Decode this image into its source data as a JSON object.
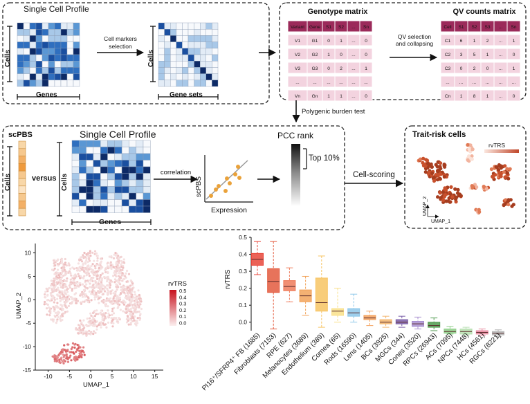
{
  "top_left": {
    "title": "Single Cell Profile",
    "cells_label": "Cells",
    "genes_label": "Genes",
    "arrow_label": [
      "Cell markers",
      "selection"
    ],
    "cells_label2": "Cells",
    "genesets_label": "Gene sets"
  },
  "top_right": {
    "geno_title": "Genotype matrix",
    "geno_header": [
      "Variant",
      "Gene",
      "S1",
      "S2",
      "...",
      "Sn"
    ],
    "geno_rows": [
      [
        "V1",
        "G1",
        "0",
        "1",
        "...",
        "0"
      ],
      [
        "V2",
        "G2",
        "1",
        "0",
        "...",
        "0"
      ],
      [
        "V3",
        "G3",
        "0",
        "2",
        "...",
        "1"
      ],
      [
        "...",
        "...",
        "...",
        "...",
        "...",
        "..."
      ],
      [
        "Vn",
        "Gn",
        "1",
        "1",
        "...",
        "0"
      ]
    ],
    "arrow_label": [
      "QV selection",
      "and collapsing"
    ],
    "qv_title": "QV counts matrix",
    "qv_header": [
      "Cell",
      "S1",
      "S2",
      "S3",
      "...",
      "Sn"
    ],
    "qv_rows": [
      [
        "C1",
        "6",
        "1",
        "2",
        "...",
        "1"
      ],
      [
        "C2",
        "3",
        "5",
        "1",
        "...",
        "0"
      ],
      [
        "C3",
        "0",
        "2",
        "0",
        "...",
        "1"
      ],
      [
        "...",
        "...",
        "...",
        "...",
        "...",
        "..."
      ],
      [
        "Cn",
        "1",
        "8",
        "1",
        "...",
        "0"
      ]
    ]
  },
  "burden_label": "Polygenic burden test",
  "middle": {
    "scpbs_title": "scPBS",
    "cells_label": "Cells",
    "versus_label": "versus",
    "profile_title": "Single Cell Profile",
    "cells_label2": "Cells",
    "genes_label": "Genes",
    "correlation_label": "correlation",
    "scatter_ylabel": "scPBS",
    "scatter_xlabel": "Expression",
    "pcc_title": "PCC rank",
    "top_label": "Top 10%",
    "cellscoring_label": "Cell-scoring",
    "trait_title": "Trait-risk cells",
    "rvtrs_label": "rvTRS",
    "umap2": "UMAP_2",
    "umap1": "UMAP_1"
  },
  "umap": {
    "ylabel": "UMAP_2",
    "xlabel": "UMAP_1",
    "legend_title": "rvTRS",
    "legend_ticks": [
      "0.5",
      "0.4",
      "0.3",
      "0.2",
      "0.1",
      "0.0"
    ],
    "xticks": [
      "-10",
      "-5",
      "0",
      "5",
      "10",
      "15"
    ],
    "yticks": [
      "10",
      "5",
      "0",
      "-5",
      "-10",
      "-15"
    ],
    "colors": {
      "low": "#f5e1e1",
      "high": "#d11f2a"
    }
  },
  "chart_data": {
    "type": "box",
    "ylabel": "rvTRS",
    "ylim": [
      -0.05,
      0.5
    ],
    "yticks": [
      "0.5",
      "0.4",
      "0.3",
      "0.2",
      "0.1",
      "0.0"
    ],
    "categories": [
      "PI16⁺/SFRP4⁺ FB (1685)",
      "Fibroblasts (7153)",
      "RPE (627)",
      "Melanocytes (3689)",
      "Endothelium (389)",
      "Cornea (65)",
      "Rods (16590)",
      "Lens (1405)",
      "BCs (3925)",
      "MGCs (344)",
      "Cones (3520)",
      "RPCs (26943)",
      "ACs (7095)",
      "NPCs (7448)",
      "HCs (4561)",
      "RGCs (8221)"
    ],
    "series": [
      {
        "name": "PI16⁺/SFRP4⁺ FB (1685)",
        "min": 0.28,
        "q1": 0.335,
        "median": 0.37,
        "q3": 0.405,
        "max": 0.475,
        "color": "#e8463a"
      },
      {
        "name": "Fibroblasts (7153)",
        "min": -0.04,
        "q1": 0.175,
        "median": 0.24,
        "q3": 0.315,
        "max": 0.475,
        "color": "#e35a3e"
      },
      {
        "name": "RPE (627)",
        "min": 0.12,
        "q1": 0.185,
        "median": 0.21,
        "q3": 0.245,
        "max": 0.32,
        "color": "#ef7b5a"
      },
      {
        "name": "Melanocytes (3689)",
        "min": 0.04,
        "q1": 0.12,
        "median": 0.155,
        "q3": 0.19,
        "max": 0.27,
        "color": "#f2a35a"
      },
      {
        "name": "Endothelium (389)",
        "min": -0.03,
        "q1": 0.065,
        "median": 0.115,
        "q3": 0.26,
        "max": 0.39,
        "color": "#f7c463"
      },
      {
        "name": "Cornea (65)",
        "min": 0.0,
        "q1": 0.04,
        "median": 0.065,
        "q3": 0.08,
        "max": 0.2,
        "color": "#f9e08a"
      },
      {
        "name": "Rods (16590)",
        "min": 0.0,
        "q1": 0.035,
        "median": 0.055,
        "q3": 0.08,
        "max": 0.165,
        "color": "#8ec8ea"
      },
      {
        "name": "Lens (1405)",
        "min": -0.02,
        "q1": 0.015,
        "median": 0.025,
        "q3": 0.04,
        "max": 0.065,
        "color": "#f4a15d"
      },
      {
        "name": "BCs (3925)",
        "min": -0.03,
        "q1": -0.01,
        "median": 0.0,
        "q3": 0.015,
        "max": 0.035,
        "color": "#f3b66f"
      },
      {
        "name": "MGCs (344)",
        "min": -0.03,
        "q1": -0.01,
        "median": 0.0,
        "q3": 0.015,
        "max": 0.035,
        "color": "#7a5ea8"
      },
      {
        "name": "Cones (3520)",
        "min": -0.04,
        "q1": -0.025,
        "median": -0.01,
        "q3": 0.005,
        "max": 0.03,
        "color": "#a88ed0"
      },
      {
        "name": "RPCs (26943)",
        "min": -0.05,
        "q1": -0.03,
        "median": -0.02,
        "q3": 0.0,
        "max": 0.025,
        "color": "#4f9a4e"
      },
      {
        "name": "ACs (7095)",
        "min": -0.07,
        "q1": -0.065,
        "median": -0.055,
        "q3": -0.04,
        "max": -0.025,
        "color": "#8fcf89"
      },
      {
        "name": "NPCs (7448)",
        "min": -0.075,
        "q1": -0.07,
        "median": -0.055,
        "q3": -0.04,
        "max": -0.03,
        "color": "#b8e0b2"
      },
      {
        "name": "HCs (4561)",
        "min": -0.08,
        "q1": -0.07,
        "median": -0.06,
        "q3": -0.05,
        "max": -0.04,
        "color": "#e88aa0"
      },
      {
        "name": "RGCs (8221)",
        "min": -0.085,
        "q1": -0.075,
        "median": -0.065,
        "q3": -0.055,
        "max": -0.045,
        "color": "#b5b5b5"
      }
    ]
  }
}
